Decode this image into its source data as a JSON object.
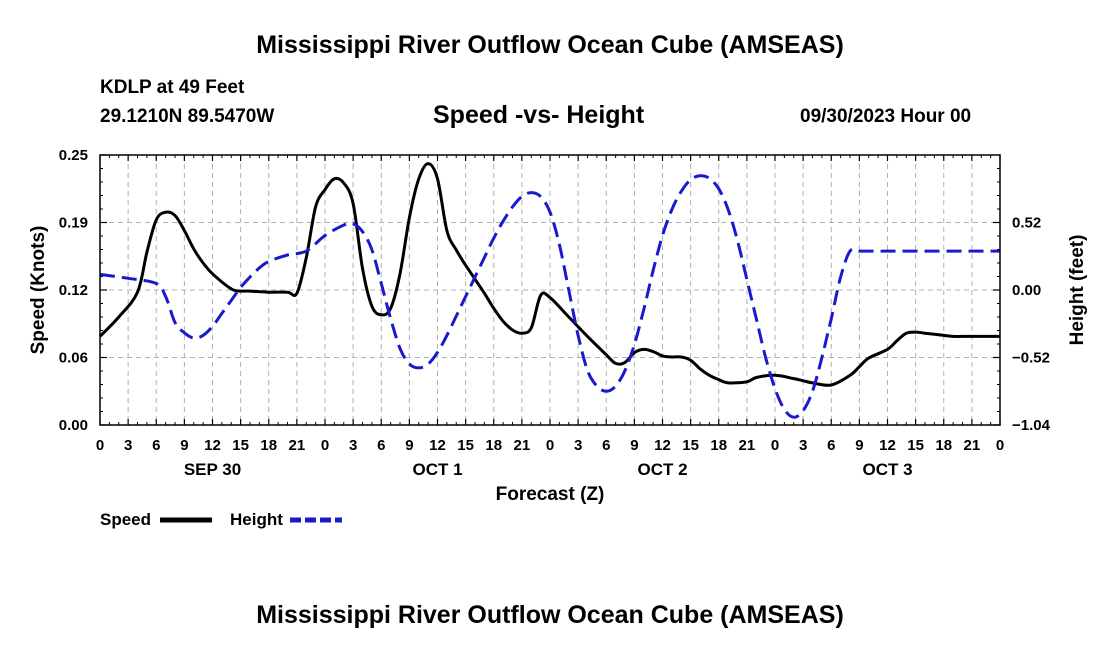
{
  "header": {
    "title": "Mississippi River Outflow Ocean Cube (AMSEAS)",
    "station": "KDLP at 49 Feet",
    "coords": "29.1210N  89.5470W",
    "datetime": "09/30/2023 Hour 00"
  },
  "footer": {
    "title": "Mississippi River Outflow Ocean Cube (AMSEAS)"
  },
  "legend": {
    "speed_label": "Speed",
    "height_label": "Height"
  },
  "chart_data": {
    "type": "line",
    "title": "Speed -vs- Height",
    "xlabel": "Forecast (Z)",
    "ylabel": "Speed (Knots)",
    "y2label": "Height (feet)",
    "x_range": [
      0,
      96
    ],
    "x_ticks": [
      0,
      3,
      6,
      9,
      12,
      15,
      18,
      21,
      24,
      27,
      30,
      33,
      36,
      39,
      42,
      45,
      48,
      51,
      54,
      57,
      60,
      63,
      66,
      69,
      72,
      75,
      78,
      81,
      84,
      87,
      90,
      93,
      96
    ],
    "x_tick_labels": [
      "0",
      "3",
      "6",
      "9",
      "12",
      "15",
      "18",
      "21",
      "0",
      "3",
      "6",
      "9",
      "12",
      "15",
      "18",
      "21",
      "0",
      "3",
      "6",
      "9",
      "12",
      "15",
      "18",
      "21",
      "0",
      "3",
      "6",
      "9",
      "12",
      "15",
      "18",
      "21",
      "0"
    ],
    "day_labels": [
      {
        "x": 12,
        "label": "SEP 30"
      },
      {
        "x": 36,
        "label": "OCT 1"
      },
      {
        "x": 60,
        "label": "OCT 2"
      },
      {
        "x": 84,
        "label": "OCT 3"
      }
    ],
    "ylim": [
      0,
      0.25
    ],
    "y_ticks": [
      0.0,
      0.0625,
      0.125,
      0.1875,
      0.25
    ],
    "y_tick_labels": [
      "0.00",
      "0.06",
      "0.12",
      "0.19",
      "0.25"
    ],
    "y2lim": [
      -1.04,
      1.04
    ],
    "y2_ticks": [
      -1.04,
      -0.52,
      0.0,
      0.52
    ],
    "y2_tick_labels": [
      "−1.04",
      "−0.52",
      "0.00",
      "0.52"
    ],
    "grid": true,
    "series": [
      {
        "name": "Speed",
        "axis": "left",
        "color": "#000000",
        "dash": "solid",
        "x": [
          0,
          2,
          4,
          5,
          6,
          7,
          8,
          9,
          10,
          11,
          12,
          14,
          15,
          16,
          18,
          20,
          21,
          22,
          23,
          24,
          25,
          26,
          27,
          28,
          29,
          30,
          31,
          32,
          33,
          34,
          35,
          36,
          37,
          38,
          39,
          40,
          41,
          42,
          43,
          44,
          45,
          46,
          47,
          48,
          50,
          52,
          54,
          55,
          56,
          57,
          58,
          59,
          60,
          61,
          62,
          63,
          64,
          65,
          66,
          67,
          69,
          70,
          72,
          74,
          75,
          76,
          78,
          80,
          81,
          82,
          84,
          85,
          86,
          87,
          88,
          90,
          91,
          92,
          93,
          94,
          95,
          96
        ],
        "y": [
          0.082,
          0.1,
          0.123,
          0.16,
          0.19,
          0.197,
          0.194,
          0.18,
          0.163,
          0.15,
          0.14,
          0.126,
          0.124,
          0.124,
          0.123,
          0.123,
          0.122,
          0.155,
          0.202,
          0.218,
          0.228,
          0.224,
          0.205,
          0.145,
          0.11,
          0.102,
          0.108,
          0.14,
          0.192,
          0.228,
          0.242,
          0.228,
          0.18,
          0.162,
          0.148,
          0.135,
          0.122,
          0.108,
          0.096,
          0.088,
          0.085,
          0.09,
          0.12,
          0.118,
          0.1,
          0.082,
          0.065,
          0.057,
          0.058,
          0.067,
          0.07,
          0.068,
          0.064,
          0.063,
          0.063,
          0.06,
          0.052,
          0.046,
          0.042,
          0.039,
          0.04,
          0.044,
          0.046,
          0.043,
          0.041,
          0.039,
          0.037,
          0.046,
          0.054,
          0.062,
          0.07,
          0.078,
          0.085,
          0.086,
          0.085,
          0.083,
          0.082,
          0.082,
          0.082,
          0.082,
          0.082,
          0.082
        ]
      },
      {
        "name": "Height",
        "axis": "right",
        "color": "#1a1acd",
        "dash": "dashed",
        "x": [
          0,
          3,
          6,
          7,
          8,
          9,
          10,
          11,
          12,
          13,
          14,
          15,
          16,
          17,
          18,
          20,
          22,
          24,
          26,
          27,
          28,
          29,
          30,
          31,
          32,
          33,
          34,
          35,
          36,
          37,
          38,
          39,
          40,
          41,
          42,
          43,
          44,
          45,
          46,
          47,
          48,
          49,
          50,
          51,
          52,
          53,
          54,
          55,
          56,
          57,
          58,
          59,
          60,
          61,
          62,
          63,
          64,
          65,
          66,
          67,
          68,
          69,
          70,
          71,
          72,
          73,
          74,
          75,
          76,
          77,
          78,
          79,
          80,
          81,
          82,
          83,
          84,
          85,
          86,
          87,
          88,
          89,
          90,
          91,
          92,
          93,
          94,
          95,
          96
        ],
        "y": [
          0.12,
          0.09,
          0.05,
          -0.05,
          -0.25,
          -0.33,
          -0.37,
          -0.35,
          -0.28,
          -0.18,
          -0.08,
          0.02,
          0.1,
          0.17,
          0.22,
          0.27,
          0.3,
          0.42,
          0.5,
          0.51,
          0.45,
          0.31,
          0.05,
          -0.22,
          -0.45,
          -0.57,
          -0.6,
          -0.57,
          -0.48,
          -0.35,
          -0.2,
          -0.05,
          0.1,
          0.25,
          0.4,
          0.53,
          0.64,
          0.72,
          0.75,
          0.72,
          0.6,
          0.35,
          0.0,
          -0.35,
          -0.62,
          -0.74,
          -0.78,
          -0.74,
          -0.62,
          -0.42,
          -0.15,
          0.15,
          0.42,
          0.62,
          0.76,
          0.85,
          0.88,
          0.86,
          0.78,
          0.62,
          0.38,
          0.08,
          -0.22,
          -0.52,
          -0.76,
          -0.92,
          -0.98,
          -0.93,
          -0.78,
          -0.52,
          -0.22,
          0.1,
          0.3,
          0.3,
          0.3,
          0.3,
          0.3,
          0.3,
          0.3,
          0.3,
          0.3,
          0.3,
          0.3,
          0.3,
          0.3,
          0.3,
          0.3,
          0.3,
          0.3
        ]
      }
    ]
  }
}
